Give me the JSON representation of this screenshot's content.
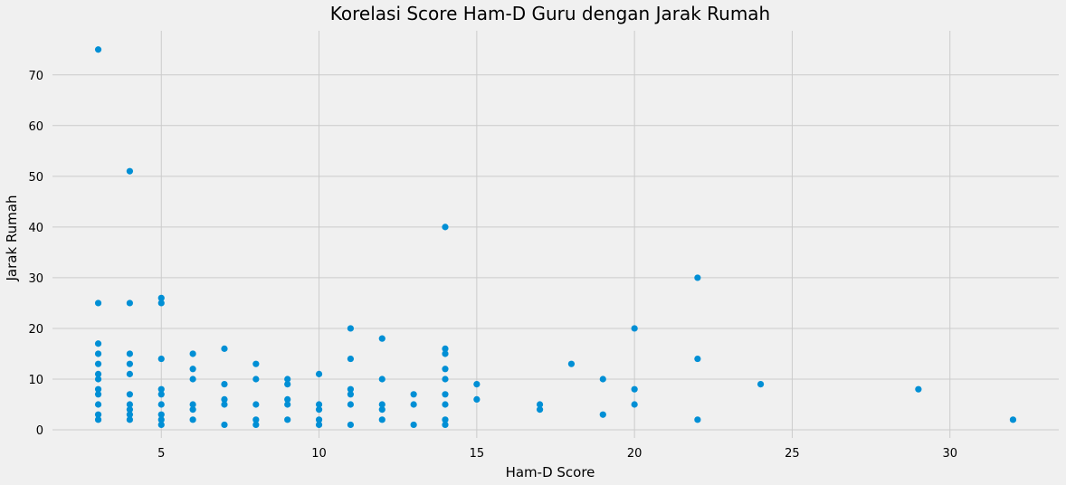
{
  "chart_data": {
    "type": "scatter",
    "title": "Korelasi Score Ham-D Guru dengan Jarak Rumah",
    "xlabel": "Ham-D Score",
    "ylabel": "Jarak Rumah",
    "xlim": [
      1.55,
      33.45
    ],
    "ylim": [
      -1.6,
      78.7
    ],
    "xticks": [
      5,
      10,
      15,
      20,
      25,
      30
    ],
    "yticks": [
      0,
      10,
      20,
      30,
      40,
      50,
      60,
      70
    ],
    "grid": true,
    "color": "#008fd5",
    "background": "#f0f0f0",
    "points": [
      [
        3,
        75
      ],
      [
        3,
        25
      ],
      [
        3,
        17
      ],
      [
        3,
        15
      ],
      [
        3,
        13
      ],
      [
        3,
        11
      ],
      [
        3,
        10
      ],
      [
        3,
        8
      ],
      [
        3,
        7
      ],
      [
        3,
        5
      ],
      [
        3,
        3
      ],
      [
        3,
        2
      ],
      [
        4,
        51
      ],
      [
        4,
        25
      ],
      [
        4,
        15
      ],
      [
        4,
        13
      ],
      [
        4,
        11
      ],
      [
        4,
        7
      ],
      [
        4,
        5
      ],
      [
        4,
        4
      ],
      [
        4,
        3
      ],
      [
        4,
        2
      ],
      [
        5,
        26
      ],
      [
        5,
        25
      ],
      [
        5,
        14
      ],
      [
        5,
        8
      ],
      [
        5,
        7
      ],
      [
        5,
        5
      ],
      [
        5,
        3
      ],
      [
        5,
        2
      ],
      [
        5,
        1
      ],
      [
        6,
        15
      ],
      [
        6,
        12
      ],
      [
        6,
        10
      ],
      [
        6,
        5
      ],
      [
        6,
        4
      ],
      [
        6,
        2
      ],
      [
        7,
        16
      ],
      [
        7,
        9
      ],
      [
        7,
        6
      ],
      [
        7,
        5
      ],
      [
        7,
        1
      ],
      [
        8,
        13
      ],
      [
        8,
        10
      ],
      [
        8,
        5
      ],
      [
        8,
        2
      ],
      [
        8,
        1
      ],
      [
        9,
        10
      ],
      [
        9,
        9
      ],
      [
        9,
        6
      ],
      [
        9,
        5
      ],
      [
        9,
        2
      ],
      [
        10,
        11
      ],
      [
        10,
        5
      ],
      [
        10,
        4
      ],
      [
        10,
        2
      ],
      [
        10,
        1
      ],
      [
        11,
        20
      ],
      [
        11,
        14
      ],
      [
        11,
        8
      ],
      [
        11,
        7
      ],
      [
        11,
        5
      ],
      [
        11,
        1
      ],
      [
        12,
        18
      ],
      [
        12,
        10
      ],
      [
        12,
        5
      ],
      [
        12,
        4
      ],
      [
        12,
        2
      ],
      [
        13,
        7
      ],
      [
        13,
        5
      ],
      [
        13,
        1
      ],
      [
        14,
        40
      ],
      [
        14,
        16
      ],
      [
        14,
        15
      ],
      [
        14,
        12
      ],
      [
        14,
        10
      ],
      [
        14,
        7
      ],
      [
        14,
        5
      ],
      [
        14,
        2
      ],
      [
        14,
        1
      ],
      [
        15,
        9
      ],
      [
        15,
        6
      ],
      [
        17,
        5
      ],
      [
        17,
        4
      ],
      [
        18,
        13
      ],
      [
        19,
        10
      ],
      [
        19,
        3
      ],
      [
        20,
        20
      ],
      [
        20,
        8
      ],
      [
        20,
        5
      ],
      [
        22,
        30
      ],
      [
        22,
        14
      ],
      [
        22,
        2
      ],
      [
        24,
        9
      ],
      [
        29,
        8
      ],
      [
        32,
        2
      ]
    ]
  }
}
